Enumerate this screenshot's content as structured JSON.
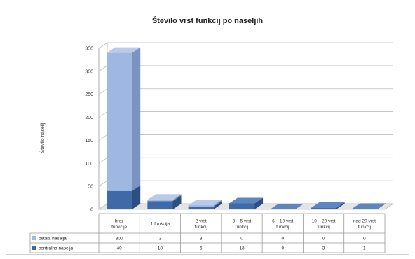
{
  "chart_data": {
    "type": "bar",
    "stacked": true,
    "three_d": true,
    "title": "Število vrst funkcij po naseljih",
    "ylabel": "Število naselij",
    "xlabel": "",
    "ylim": [
      0,
      350
    ],
    "yticks": [
      0,
      50,
      100,
      150,
      200,
      250,
      300,
      350
    ],
    "grid": true,
    "legend": "data-table",
    "categories": [
      [
        "brez",
        "funkcije"
      ],
      [
        "1 funkcija"
      ],
      [
        "2 vrst",
        "funkcij"
      ],
      [
        "3 – 5 vrst",
        "funkcij"
      ],
      [
        "6 – 10 vrst",
        "funkcij"
      ],
      [
        "10 – 20 vrst",
        "funkcij"
      ],
      [
        "nad 20 vrst",
        "funkcij"
      ]
    ],
    "series": [
      {
        "name": "centralna naselja",
        "values": [
          40,
          18,
          6,
          13,
          0,
          3,
          1
        ],
        "color": "#3e6aa8",
        "side": "#2d4f80",
        "top": "#5d86c0"
      },
      {
        "name": "ostala naselja",
        "values": [
          300,
          3,
          3,
          0,
          0,
          0,
          0
        ],
        "color": "#9fb8e2",
        "side": "#7a93c0",
        "top": "#b9cbeb"
      }
    ],
    "table_rows": [
      {
        "series": "ostala naselja",
        "values": [
          "300",
          "3",
          "3",
          "0",
          "0",
          "0",
          "0"
        ],
        "color": "#9fb8e2"
      },
      {
        "series": "centralna naselja",
        "values": [
          "40",
          "18",
          "6",
          "13",
          "0",
          "3",
          "1"
        ],
        "color": "#3e6aa8"
      }
    ]
  }
}
